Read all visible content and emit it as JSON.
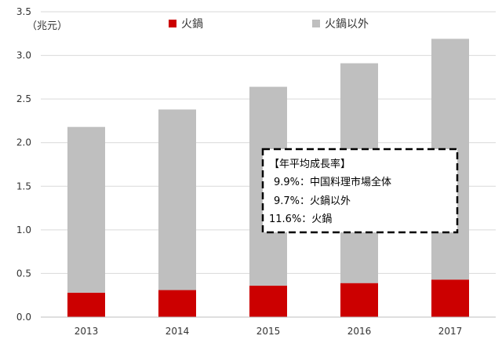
{
  "chart_data": {
    "type": "bar",
    "stacked": true,
    "categories": [
      "2013",
      "2014",
      "2015",
      "2016",
      "2017"
    ],
    "series": [
      {
        "name": "火鍋",
        "values": [
          0.28,
          0.31,
          0.36,
          0.39,
          0.43
        ],
        "color": "#cc0000"
      },
      {
        "name": "火鍋以外",
        "values": [
          1.9,
          2.07,
          2.28,
          2.52,
          2.76
        ],
        "color": "#bfbfbf"
      }
    ],
    "ylabel": "（兆元）",
    "ylim": [
      0,
      3.5
    ],
    "yticks": [
      "0.0",
      "0.5",
      "1.0",
      "1.5",
      "2.0",
      "2.5",
      "3.0",
      "3.5"
    ],
    "grid": true,
    "legend_position": "top",
    "annotation": {
      "title": "【年平均成長率】",
      "lines": [
        "9.9%：中国料理市場全体",
        "9.7%：火鍋以外",
        "11.6%：火鍋"
      ]
    }
  }
}
